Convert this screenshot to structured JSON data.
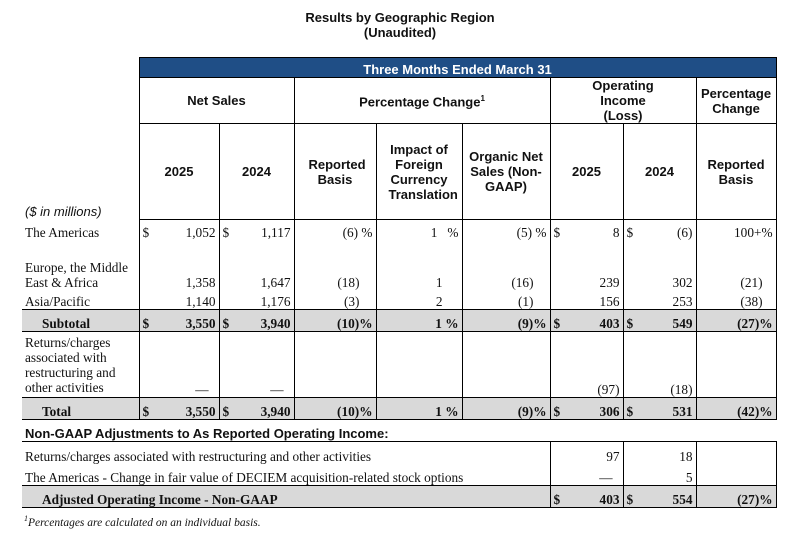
{
  "header": {
    "title": "Results by Geographic Region",
    "subtitle": "(Unaudited)"
  },
  "banner": "Three Months Ended March 31",
  "groups": {
    "net_sales": "Net Sales",
    "pct_change": "Percentage Change",
    "pct_change_sup": "1",
    "op_income": "Operating Income (Loss)",
    "pct_change2": "Percentage Change"
  },
  "cols": {
    "y2025": "2025",
    "y2024": "2024",
    "reported": "Reported Basis",
    "fx": "Impact of Foreign Currency Translation",
    "organic": "Organic Net Sales (Non-GAAP)",
    "oy2025": "2025",
    "oy2024": "2024",
    "reported2": "Reported Basis"
  },
  "units_note": "($ in millions)",
  "rows": {
    "americas": {
      "label": "The Americas",
      "ns25": "1,052",
      "ns24": "1,117",
      "rep": "(6)",
      "fx": "1",
      "org": "(5)",
      "oi25": "8",
      "oi24": "(6)",
      "rep2": "100+"
    },
    "emea": {
      "label": "Europe, the Middle East & Africa",
      "ns25": "1,358",
      "ns24": "1,647",
      "rep": "(18)",
      "fx": "1",
      "org": "(16)",
      "oi25": "239",
      "oi24": "302",
      "rep2": "(21)"
    },
    "apac": {
      "label": "Asia/Pacific",
      "ns25": "1,140",
      "ns24": "1,176",
      "rep": "(3)",
      "fx": "2",
      "org": "(1)",
      "oi25": "156",
      "oi24": "253",
      "rep2": "(38)"
    },
    "subtotal": {
      "label": "Subtotal",
      "ns25": "3,550",
      "ns24": "3,940",
      "rep": "(10)",
      "fx": "1",
      "org": "(9)",
      "oi25": "403",
      "oi24": "549",
      "rep2": "(27)"
    },
    "returns": {
      "label": "Returns/charges associated with restructuring and other activities",
      "ns25": "—",
      "ns24": "—",
      "oi25": "(97)",
      "oi24": "(18)"
    },
    "total": {
      "label": "Total",
      "ns25": "3,550",
      "ns24": "3,940",
      "rep": "(10)",
      "fx": "1",
      "org": "(9)",
      "oi25": "306",
      "oi24": "531",
      "rep2": "(42)"
    }
  },
  "adjustments": {
    "heading": "Non-GAAP Adjustments to As Reported Operating Income:",
    "returns": {
      "label": "Returns/charges associated with restructuring and other activities",
      "oi25": "97",
      "oi24": "18"
    },
    "deciem": {
      "label": "The Americas - Change in fair value of DECIEM acquisition-related stock options",
      "oi25": "—",
      "oi24": "5"
    },
    "adjusted": {
      "label": "Adjusted Operating Income - Non-GAAP",
      "oi25": "403",
      "oi24": "554",
      "rep2": "(27)"
    }
  },
  "symbols": {
    "dollar": "$",
    "percent": "%",
    "plus_percent": "%"
  },
  "footnote": {
    "sup": "1",
    "text": "Percentages are calculated on an individual basis."
  }
}
